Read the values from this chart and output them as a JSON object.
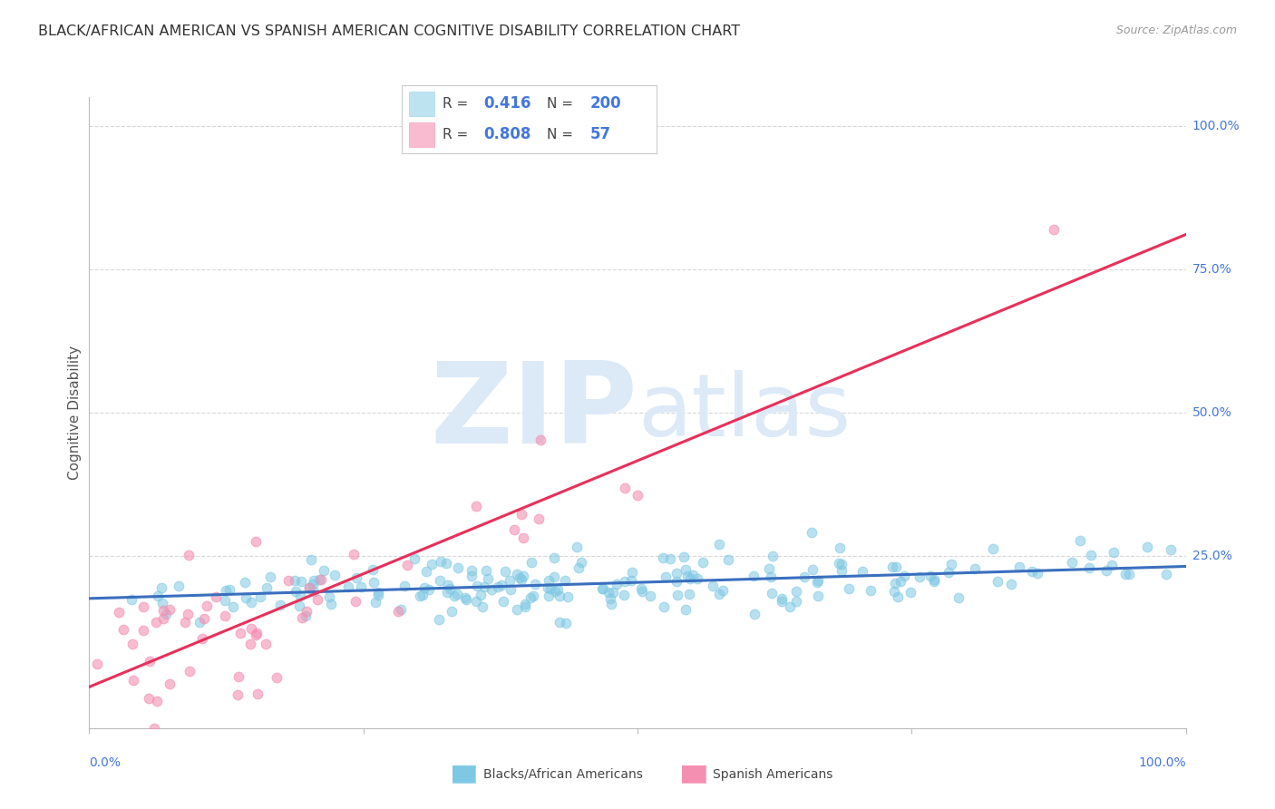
{
  "title": "BLACK/AFRICAN AMERICAN VS SPANISH AMERICAN COGNITIVE DISABILITY CORRELATION CHART",
  "source": "Source: ZipAtlas.com",
  "ylabel": "Cognitive Disability",
  "blue_R": 0.416,
  "blue_N": 200,
  "pink_R": 0.808,
  "pink_N": 57,
  "blue_color": "#7ec8e3",
  "pink_color": "#f48fb1",
  "blue_line_color": "#3a6fbf",
  "pink_line_color": "#e8305a",
  "legend_text_color": "#4477dd",
  "watermark_color": "#dce9f7",
  "background_color": "#ffffff",
  "grid_color": "#d8d8d8",
  "title_color": "#333333",
  "axis_tick_color": "#4477dd",
  "blue_seed": 42,
  "pink_seed": 77,
  "ylim_min": -0.05,
  "ylim_max": 1.05,
  "xlim_min": 0.0,
  "xlim_max": 1.0
}
